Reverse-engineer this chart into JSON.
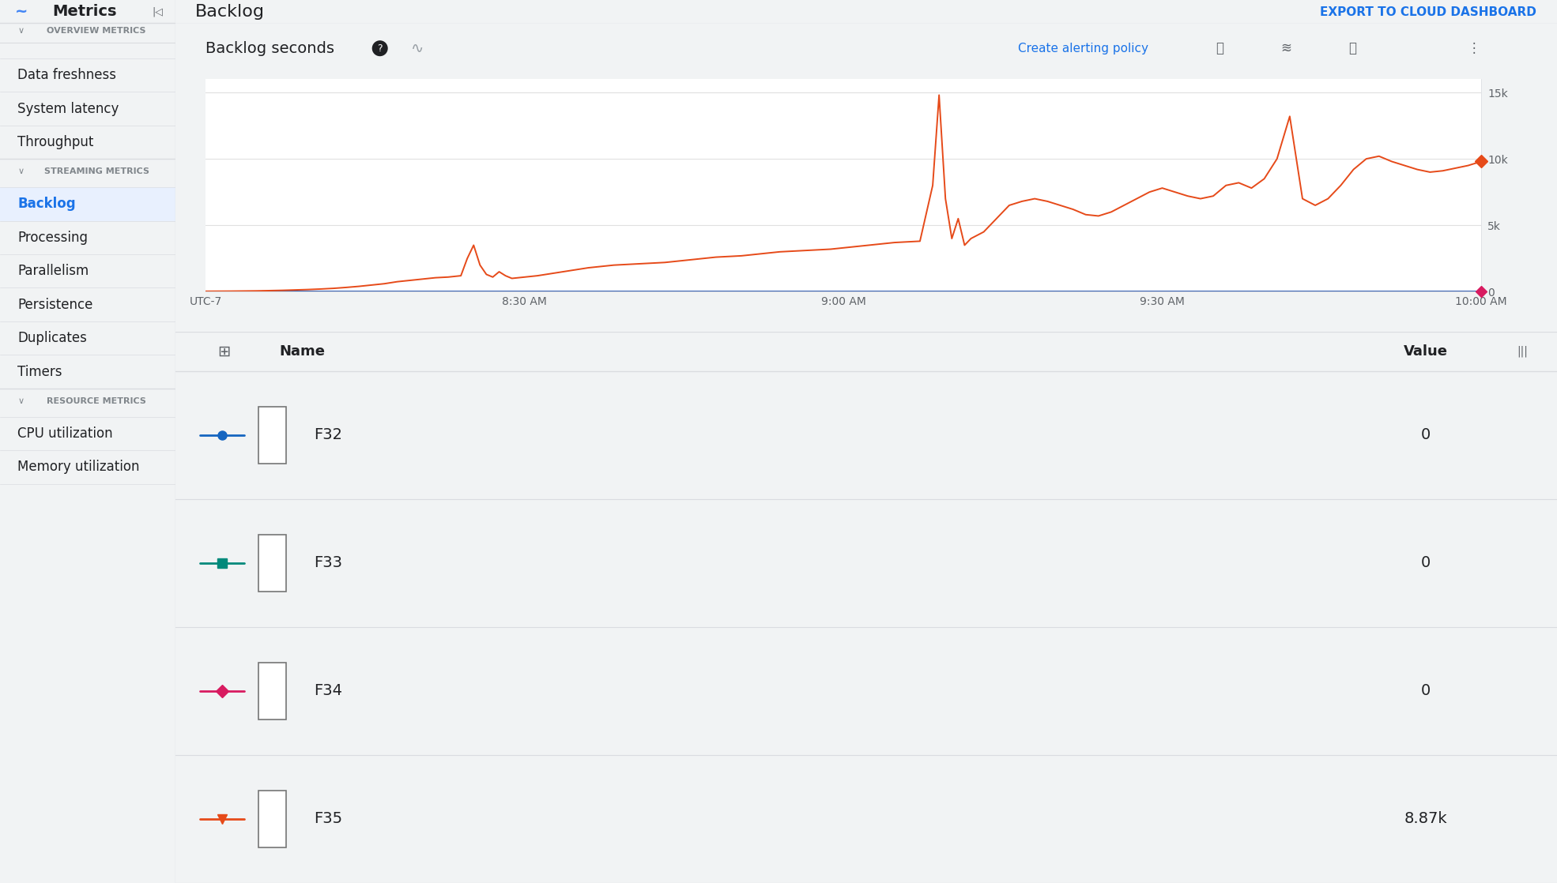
{
  "title": "Backlog",
  "chart_title": "Backlog seconds",
  "export_label": "EXPORT TO CLOUD DASHBOARD",
  "create_alert_label": "Create alerting policy",
  "sidebar_title": "Metrics",
  "overview_header": "OVERVIEW METRICS",
  "streaming_header": "STREAMING METRICS",
  "resource_header": "RESOURCE METRICS",
  "menu_items_overview": [
    "Data freshness",
    "System latency",
    "Throughput"
  ],
  "menu_items_streaming": [
    "Backlog",
    "Processing",
    "Parallelism",
    "Persistence",
    "Duplicates",
    "Timers"
  ],
  "menu_items_resource": [
    "CPU utilization",
    "Memory utilization"
  ],
  "selected_item": "Backlog",
  "x_ticks": [
    "UTC-7",
    "8:30 AM",
    "9:00 AM",
    "9:30 AM",
    "10:00 AM"
  ],
  "y_ticks_vals": [
    0,
    5000,
    10000,
    15000
  ],
  "y_ticks_labels": [
    "0",
    "5k",
    "10k",
    "15k"
  ],
  "y_max": 16000,
  "line_color_F35": "#e64a19",
  "line_color_F32": "#1565c0",
  "line_color_F33": "#00897b",
  "line_color_F34": "#d81b60",
  "table_rows": [
    {
      "name": "F32",
      "value": "0",
      "color": "#1565c0",
      "marker": "circle"
    },
    {
      "name": "F33",
      "value": "0",
      "color": "#00897b",
      "marker": "square"
    },
    {
      "name": "F34",
      "value": "0",
      "color": "#d81b60",
      "marker": "diamond"
    },
    {
      "name": "F35",
      "value": "8.87k",
      "color": "#e64a19",
      "marker": "triangle_down"
    }
  ],
  "grid_color": "#e0e0e0",
  "divider_color": "#dadce0",
  "sidebar_selected_bg": "#e8f0fe",
  "sidebar_selected_color": "#1a73e8",
  "x_data": [
    0.0,
    0.01,
    0.02,
    0.03,
    0.04,
    0.05,
    0.06,
    0.07,
    0.08,
    0.09,
    0.1,
    0.11,
    0.12,
    0.13,
    0.14,
    0.15,
    0.16,
    0.17,
    0.18,
    0.19,
    0.2,
    0.205,
    0.21,
    0.215,
    0.22,
    0.225,
    0.23,
    0.235,
    0.24,
    0.25,
    0.26,
    0.27,
    0.28,
    0.29,
    0.3,
    0.31,
    0.32,
    0.33,
    0.34,
    0.35,
    0.36,
    0.37,
    0.38,
    0.39,
    0.4,
    0.41,
    0.42,
    0.43,
    0.44,
    0.45,
    0.46,
    0.47,
    0.48,
    0.49,
    0.5,
    0.51,
    0.52,
    0.53,
    0.54,
    0.55,
    0.56,
    0.57,
    0.575,
    0.58,
    0.585,
    0.59,
    0.595,
    0.6,
    0.61,
    0.62,
    0.63,
    0.64,
    0.65,
    0.66,
    0.67,
    0.68,
    0.69,
    0.7,
    0.71,
    0.72,
    0.73,
    0.74,
    0.75,
    0.76,
    0.77,
    0.78,
    0.79,
    0.8,
    0.81,
    0.82,
    0.83,
    0.84,
    0.85,
    0.86,
    0.87,
    0.88,
    0.89,
    0.9,
    0.91,
    0.92,
    0.93,
    0.94,
    0.95,
    0.96,
    0.97,
    0.98,
    0.99,
    1.0
  ],
  "y_data_F35": [
    30,
    35,
    40,
    50,
    60,
    80,
    100,
    130,
    160,
    200,
    250,
    320,
    400,
    500,
    600,
    750,
    850,
    950,
    1050,
    1100,
    1200,
    2500,
    3500,
    2000,
    1300,
    1100,
    1500,
    1200,
    1000,
    1100,
    1200,
    1350,
    1500,
    1650,
    1800,
    1900,
    2000,
    2050,
    2100,
    2150,
    2200,
    2300,
    2400,
    2500,
    2600,
    2650,
    2700,
    2800,
    2900,
    3000,
    3050,
    3100,
    3150,
    3200,
    3300,
    3400,
    3500,
    3600,
    3700,
    3750,
    3800,
    8000,
    14800,
    7000,
    4000,
    5500,
    3500,
    4000,
    4500,
    5500,
    6500,
    6800,
    7000,
    6800,
    6500,
    6200,
    5800,
    5700,
    6000,
    6500,
    7000,
    7500,
    7800,
    7500,
    7200,
    7000,
    7200,
    8000,
    8200,
    7800,
    8500,
    10000,
    13200,
    7000,
    6500,
    7000,
    8000,
    9200,
    10000,
    10200,
    9800,
    9500,
    9200,
    9000,
    9100,
    9300,
    9500,
    9800
  ],
  "y_data_others": [
    0,
    0,
    0,
    0,
    0,
    0,
    0,
    0,
    0,
    0,
    0,
    0,
    0,
    0,
    0,
    0,
    0,
    0,
    0,
    0,
    0,
    0,
    0,
    0,
    0,
    0,
    0,
    0,
    0,
    0,
    0,
    0,
    0,
    0,
    0,
    0,
    0,
    0,
    0,
    0,
    0,
    0,
    0,
    0,
    0,
    0,
    0,
    0,
    0,
    0,
    0,
    0,
    0,
    0,
    0,
    0,
    0,
    0,
    0,
    0,
    0,
    0,
    0,
    0,
    0,
    0,
    0,
    0,
    0,
    0,
    0,
    0,
    0,
    0,
    0,
    0,
    0,
    0,
    0,
    0,
    0,
    0,
    0,
    0,
    0,
    0,
    0,
    0,
    0,
    0,
    0,
    0,
    0,
    0,
    0,
    0,
    0,
    0,
    0,
    0,
    0,
    0,
    0,
    0,
    0,
    0,
    0,
    0
  ]
}
